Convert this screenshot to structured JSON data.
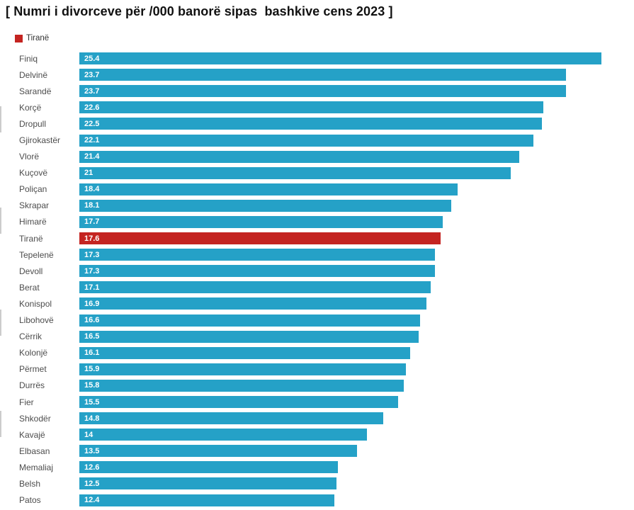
{
  "header": {
    "title": "[ Numri i divorceve për /000 banorë sipas  bashkive cens 2023 ]"
  },
  "legend": {
    "label": "Tiranë",
    "swatch_color": "#c42421"
  },
  "colors": {
    "bar": "#25a1c7",
    "highlight": "#c42421",
    "value_text": "#ffffff",
    "label_text": "#4d4d4d",
    "title_text": "#111111"
  },
  "chart_data": {
    "type": "bar",
    "orientation": "horizontal",
    "title": "[ Numri i divorceve për /000 banorë sipas  bashkive cens 2023 ]",
    "xlabel": "",
    "ylabel": "",
    "xlim": [
      0,
      27
    ],
    "grid": false,
    "legend_position": "top-left",
    "legend_entries": [
      "Tiranë"
    ],
    "highlight_category": "Tiranë",
    "value_labels": "inside-left",
    "categories": [
      "Finiq",
      "Delvinë",
      "Sarandë",
      "Korçë",
      "Dropull",
      "Gjirokastër",
      "Vlorë",
      "Kuçovë",
      "Poliçan",
      "Skrapar",
      "Himarë",
      "Tiranë",
      "Tepelenë",
      "Devoll",
      "Berat",
      "Konispol",
      "Libohovë",
      "Cërrik",
      "Kolonjë",
      "Përmet",
      "Durrës",
      "Fier",
      "Shkodër",
      "Kavajë",
      "Elbasan",
      "Memaliaj",
      "Belsh",
      "Patos"
    ],
    "values": [
      25.4,
      23.7,
      23.7,
      22.6,
      22.5,
      22.1,
      21.4,
      21,
      18.4,
      18.1,
      17.7,
      17.6,
      17.3,
      17.3,
      17.1,
      16.9,
      16.6,
      16.5,
      16.1,
      15.9,
      15.8,
      15.5,
      14.8,
      14,
      13.5,
      12.6,
      12.5,
      12.4
    ]
  },
  "decorations": {
    "edge_tick_tops": [
      150,
      293,
      437,
      580
    ]
  }
}
